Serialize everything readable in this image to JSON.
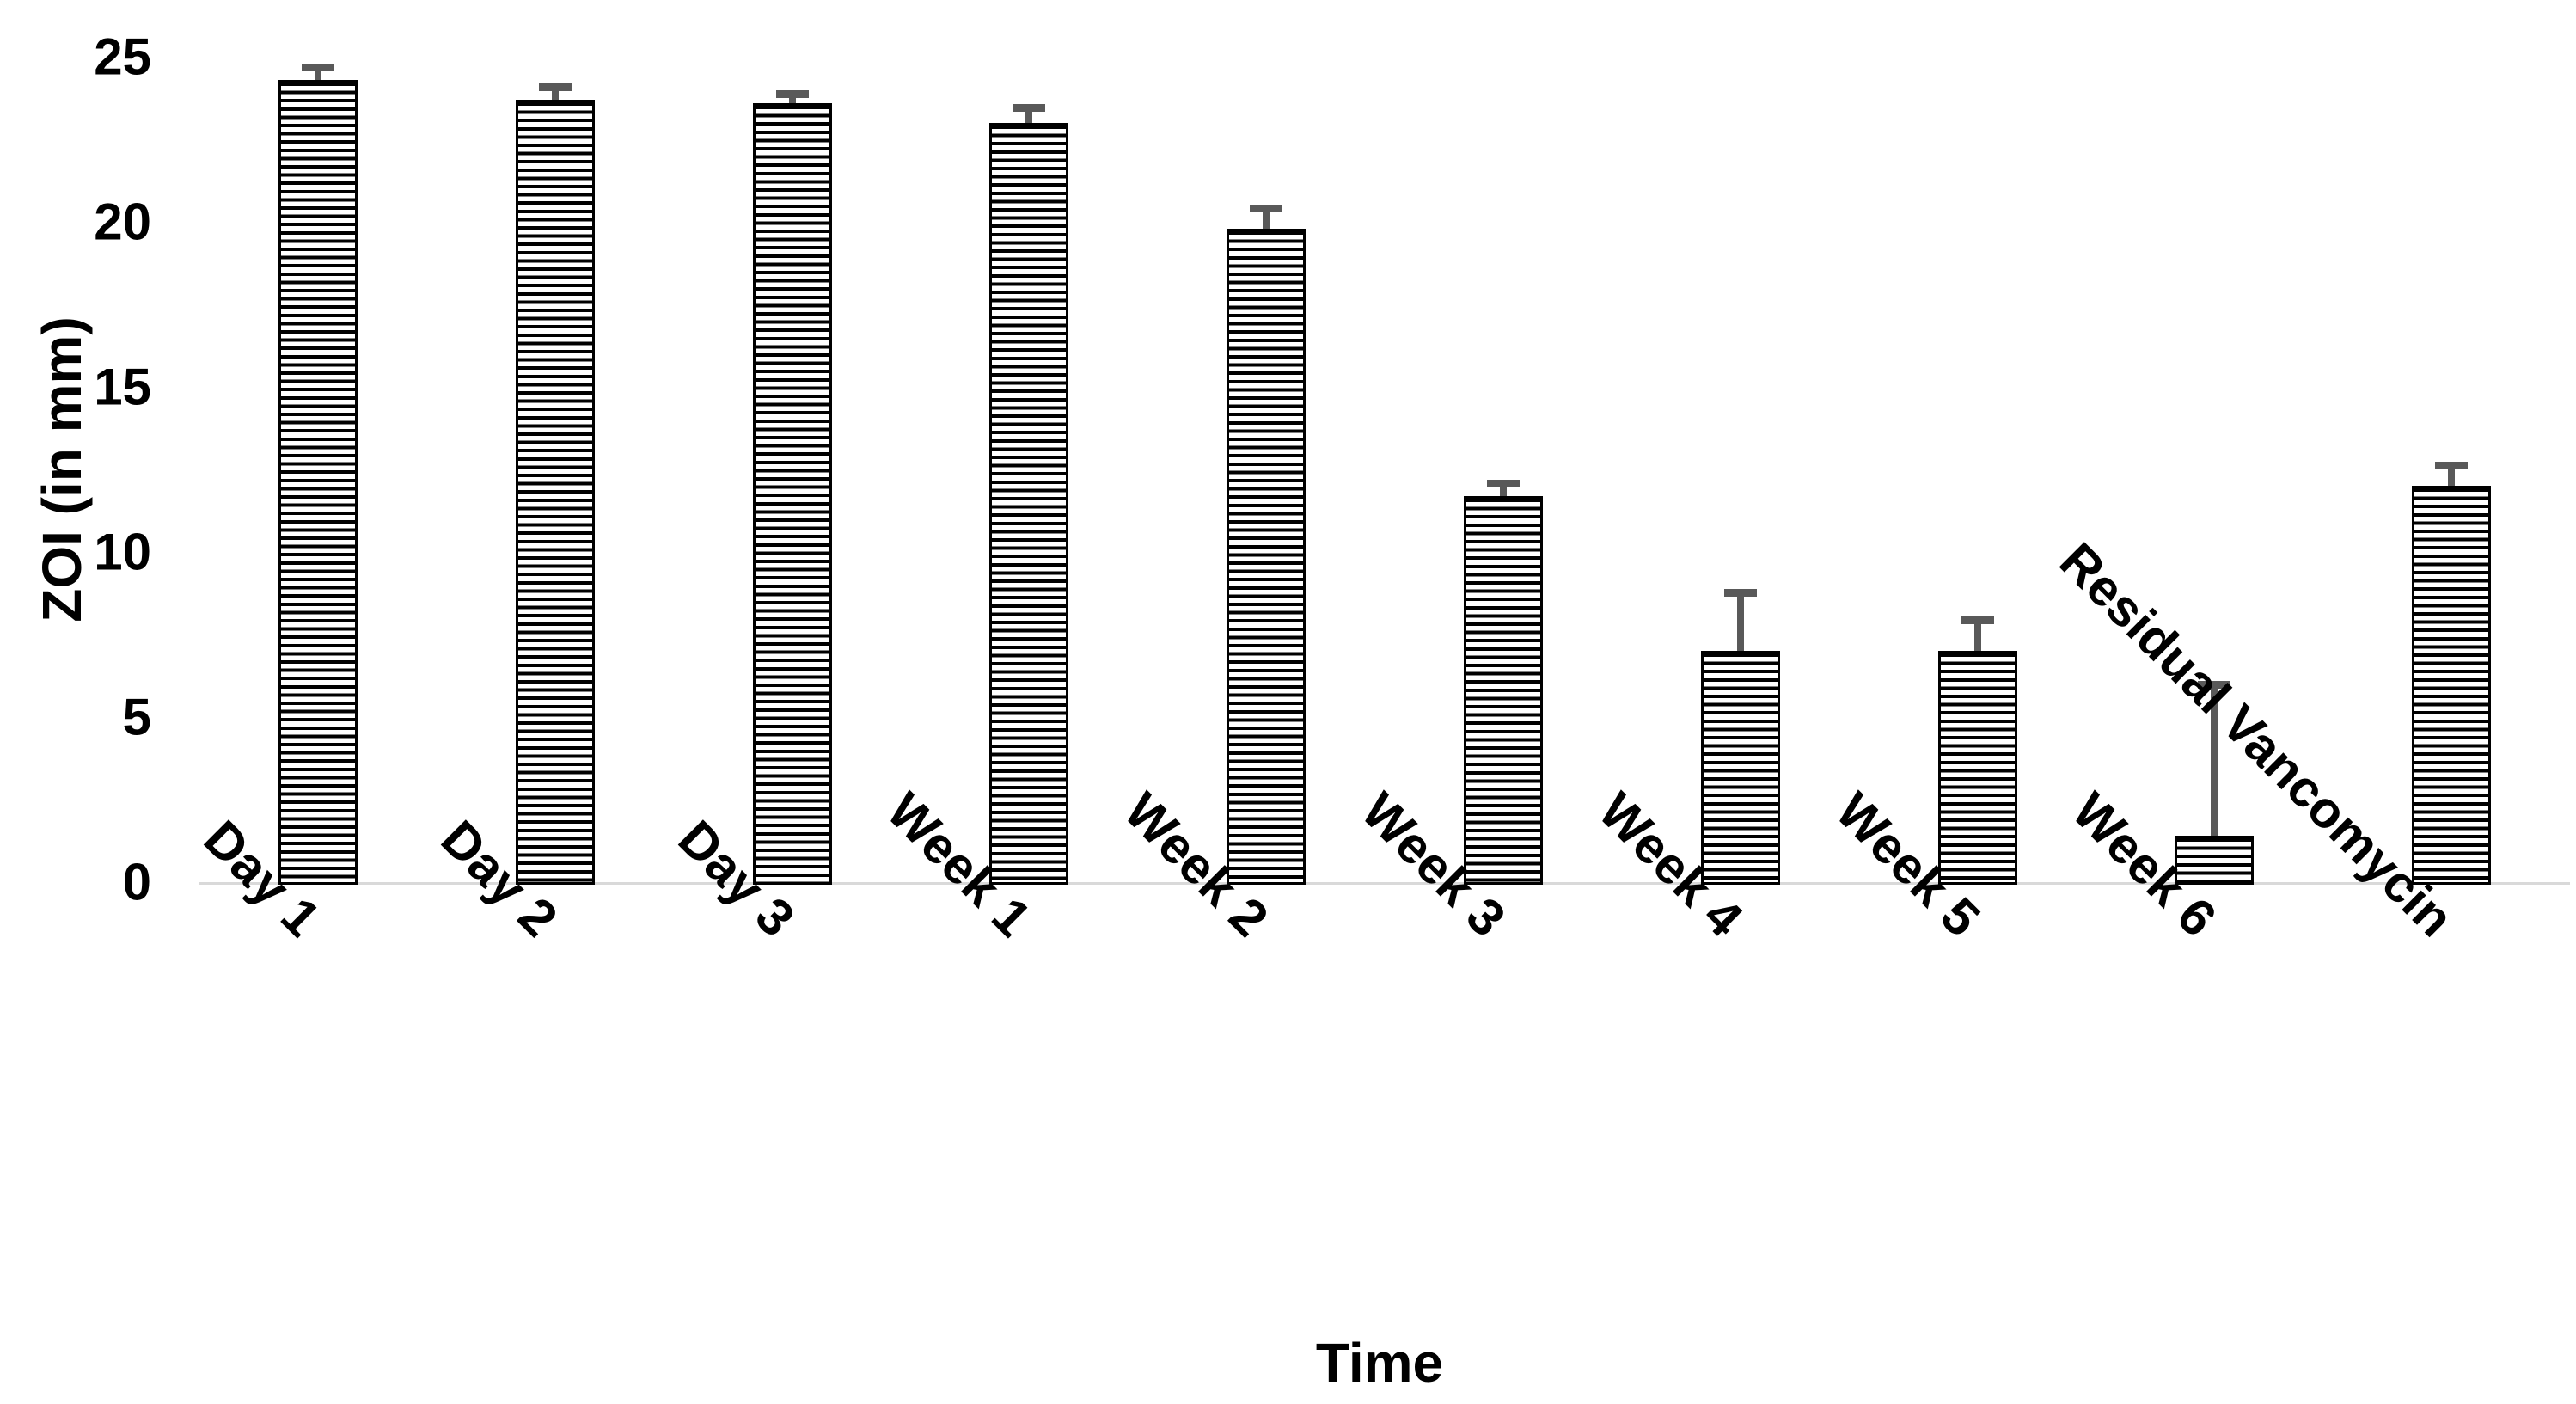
{
  "chart_data": {
    "type": "bar",
    "title": "",
    "xlabel": "Time",
    "ylabel": "ZOI (in mm)",
    "categories": [
      "Day 1",
      "Day 2",
      "Day 3",
      "Week 1",
      "Week 2",
      "Week 3",
      "Week 4",
      "Week 5",
      "Week 6",
      "Residual Vancomycin"
    ],
    "values": [
      24.3,
      23.7,
      23.6,
      23.0,
      19.8,
      11.7,
      7.0,
      7.0,
      1.4,
      12.0
    ],
    "errors_plus": [
      0.3,
      0.3,
      0.2,
      0.4,
      0.55,
      0.3,
      1.7,
      0.85,
      4.5,
      0.55
    ],
    "ylim": [
      0,
      25
    ],
    "yticks": [
      0,
      5,
      10,
      15,
      20,
      25
    ],
    "grid": false,
    "legend": null,
    "style": {
      "bar_fill": "#ffffff",
      "bar_stripe": "#000000",
      "bar_border": "#000000",
      "bar_pattern": "horizontal-stripes",
      "error_bar_color": "#595959",
      "axis_line_color": "#d9d9d9",
      "text_color": "#000000",
      "background": "#ffffff"
    }
  }
}
